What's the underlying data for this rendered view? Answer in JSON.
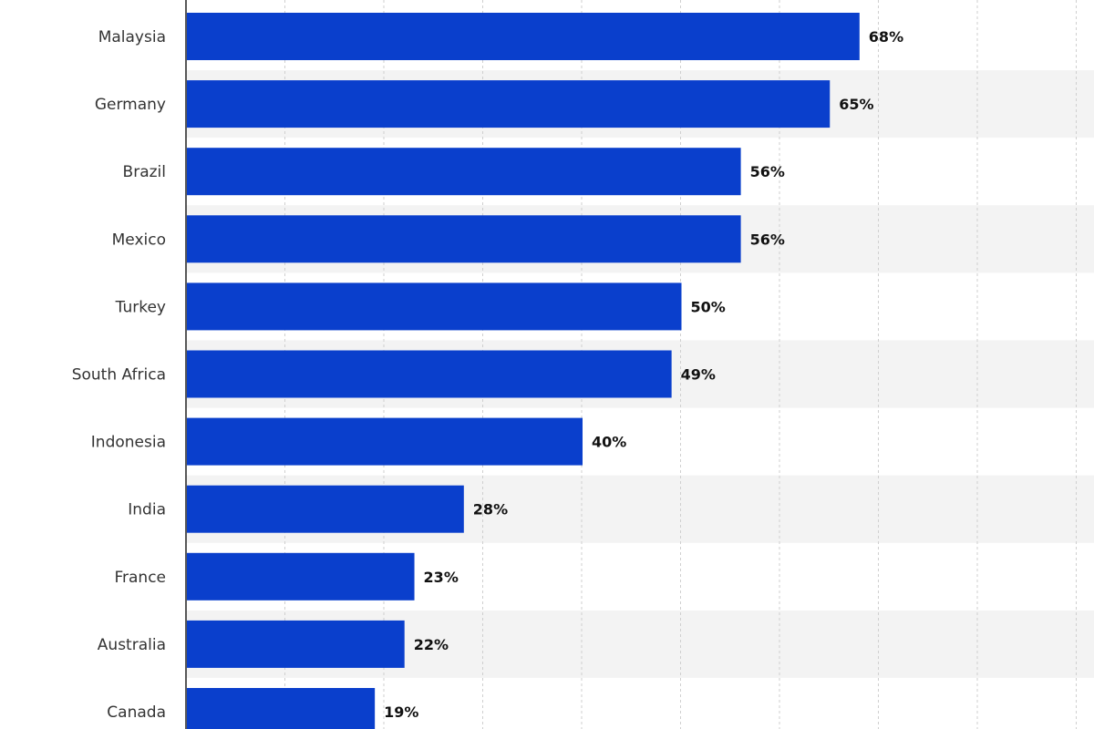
{
  "chart_data": {
    "type": "bar",
    "orientation": "horizontal",
    "categories": [
      "Malaysia",
      "Germany",
      "Brazil",
      "Mexico",
      "Turkey",
      "South Africa",
      "Indonesia",
      "India",
      "France",
      "Australia",
      "Canada"
    ],
    "values": [
      68,
      65,
      56,
      56,
      50,
      49,
      40,
      28,
      23,
      22,
      19
    ],
    "value_labels": [
      "68%",
      "65%",
      "56%",
      "56%",
      "50%",
      "49%",
      "40%",
      "28%",
      "23%",
      "22%",
      "19%"
    ],
    "xlim": [
      0,
      90
    ],
    "grid": true,
    "bar_color": "#0a3fcc",
    "band_color": "#f3f3f3",
    "title": "",
    "xlabel": "",
    "ylabel": ""
  }
}
